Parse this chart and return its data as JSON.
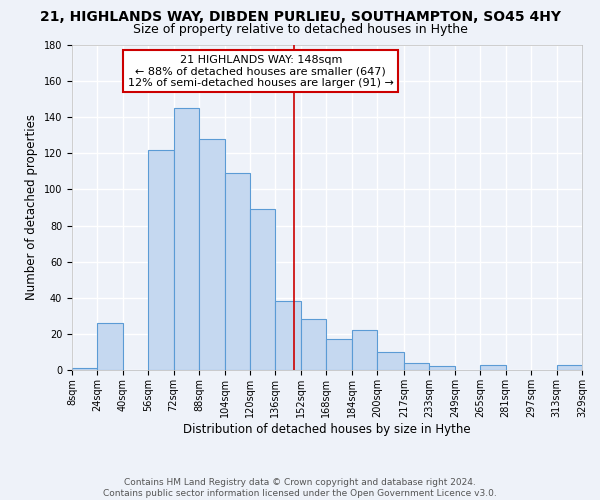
{
  "title": "21, HIGHLANDS WAY, DIBDEN PURLIEU, SOUTHAMPTON, SO45 4HY",
  "subtitle": "Size of property relative to detached houses in Hythe",
  "xlabel": "Distribution of detached houses by size in Hythe",
  "ylabel": "Number of detached properties",
  "bin_edges": [
    8,
    24,
    40,
    56,
    72,
    88,
    104,
    120,
    136,
    152,
    168,
    184,
    200,
    217,
    233,
    249,
    265,
    281,
    297,
    313,
    329
  ],
  "bar_heights": [
    1,
    26,
    0,
    122,
    145,
    128,
    109,
    89,
    38,
    28,
    17,
    22,
    10,
    4,
    2,
    0,
    3,
    0,
    0,
    3
  ],
  "bar_color": "#c5d8f0",
  "bar_edge_color": "#5b9bd5",
  "vline_x": 148,
  "vline_color": "#cc0000",
  "ylim": [
    0,
    180
  ],
  "yticks": [
    0,
    20,
    40,
    60,
    80,
    100,
    120,
    140,
    160,
    180
  ],
  "tick_labels": [
    "8sqm",
    "24sqm",
    "40sqm",
    "56sqm",
    "72sqm",
    "88sqm",
    "104sqm",
    "120sqm",
    "136sqm",
    "152sqm",
    "168sqm",
    "184sqm",
    "200sqm",
    "217sqm",
    "233sqm",
    "249sqm",
    "265sqm",
    "281sqm",
    "297sqm",
    "313sqm",
    "329sqm"
  ],
  "annotation_title": "21 HIGHLANDS WAY: 148sqm",
  "annotation_line1": "← 88% of detached houses are smaller (647)",
  "annotation_line2": "12% of semi-detached houses are larger (91) →",
  "annotation_box_color": "#ffffff",
  "annotation_box_edge": "#cc0000",
  "footer1": "Contains HM Land Registry data © Crown copyright and database right 2024.",
  "footer2": "Contains public sector information licensed under the Open Government Licence v3.0.",
  "background_color": "#eef2f9",
  "grid_color": "#ffffff",
  "title_fontsize": 10,
  "subtitle_fontsize": 9,
  "axis_label_fontsize": 8.5,
  "tick_fontsize": 7,
  "footer_fontsize": 6.5,
  "ann_fontsize": 8
}
